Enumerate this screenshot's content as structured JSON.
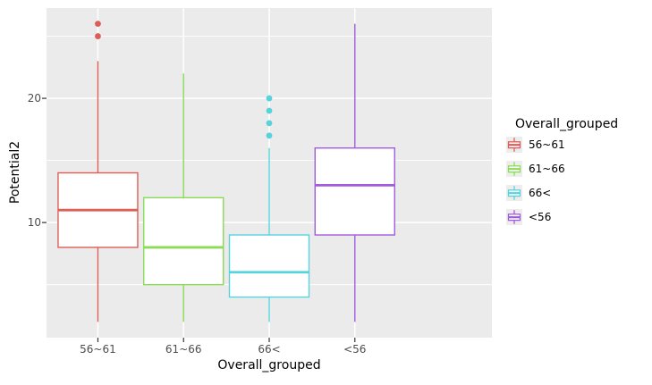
{
  "chart_data": {
    "type": "boxplot",
    "title": "",
    "xlabel": "Overall_grouped",
    "ylabel": "Potential2",
    "categories": [
      "56~61",
      "61~66",
      "66<",
      "<56"
    ],
    "y_ticks": [
      10,
      20
    ],
    "y_tick_labels": [
      "10",
      "20"
    ],
    "y_minor_ticks": [
      5,
      15,
      25
    ],
    "ylim": [
      0.73,
      27.27
    ],
    "grid": "white major and minor horizontal lines, white vertical line at each category center",
    "panel_bg": "#ebebeb",
    "grid_color": "#ffffff",
    "tick_color": "#333333",
    "box_fill": "#ffffff",
    "legend": {
      "title": "Overall_grouped",
      "position": "right",
      "key_bg": "#ededed"
    },
    "series": [
      {
        "label": "56~61",
        "color": "#db5f57",
        "whisker_low": 2,
        "q1": 8,
        "median": 11,
        "q3": 14,
        "whisker_high": 23,
        "outliers": [
          25,
          26
        ]
      },
      {
        "label": "61~66",
        "color": "#8bdb57",
        "whisker_low": 2,
        "q1": 5,
        "median": 8,
        "q3": 12,
        "whisker_high": 22,
        "outliers": []
      },
      {
        "label": "66<",
        "color": "#57d3db",
        "whisker_low": 2,
        "q1": 4,
        "median": 6,
        "q3": 9,
        "whisker_high": 16,
        "outliers": [
          17,
          18,
          19,
          20
        ]
      },
      {
        "label": "<56",
        "color": "#a25cdb",
        "whisker_low": 2,
        "q1": 9,
        "median": 13,
        "q3": 16,
        "whisker_high": 26,
        "outliers": []
      }
    ]
  }
}
